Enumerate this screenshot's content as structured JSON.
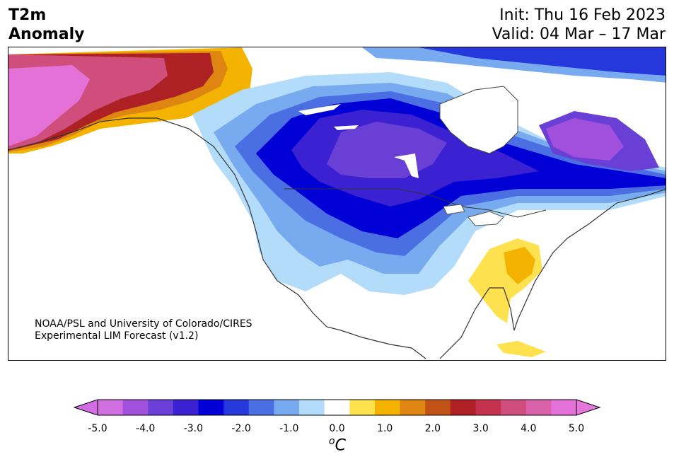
{
  "header": {
    "variable": "T2m",
    "subtitle": "Anomaly",
    "init": "Init: Thu 16 Feb 2023",
    "valid": "Valid: 04 Mar – 17 Mar"
  },
  "credit": {
    "line1": "NOAA/PSL and University of Colorado/CIRES",
    "line2": "Experimental LIM Forecast (v1.2)"
  },
  "colorbar": {
    "unit_sup": "o",
    "unit": "C",
    "ticks": [
      "-5.0",
      "-4.0",
      "-3.0",
      "-2.0",
      "-1.0",
      "0.0",
      "1.0",
      "2.0",
      "3.0",
      "4.0",
      "5.0"
    ],
    "colors": [
      "#cf6fe0",
      "#a050dd",
      "#6a3fd6",
      "#3c21d2",
      "#0000d6",
      "#2538dc",
      "#4b6fe2",
      "#78aaf0",
      "#b2dcfa",
      "#ffffff",
      "#fde14e",
      "#f3b300",
      "#df8512",
      "#c35217",
      "#ad2124",
      "#c4334e",
      "#cf4e7c",
      "#d861a9",
      "#e471d8"
    ],
    "under_color": "#d26ee3",
    "over_color": "#e576dc"
  }
}
